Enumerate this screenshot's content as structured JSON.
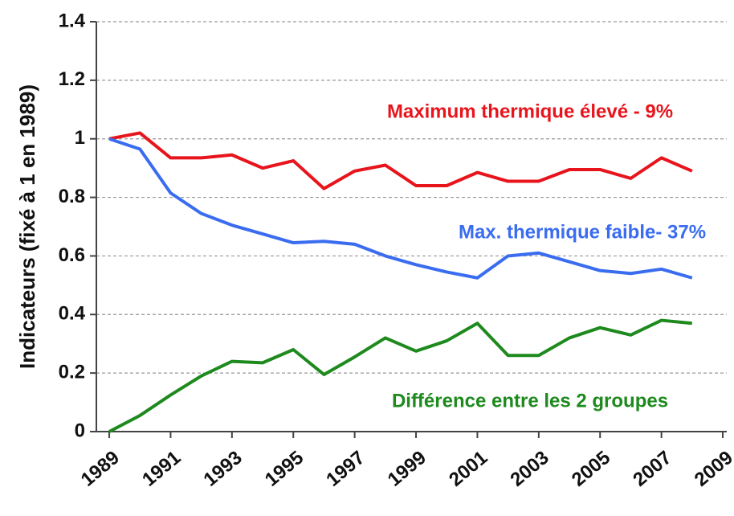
{
  "chart_data": {
    "type": "line",
    "y_label": "Indicateurs (fixé à 1 en 1989)",
    "x": [
      1989,
      1990,
      1991,
      1992,
      1993,
      1994,
      1995,
      1996,
      1997,
      1998,
      1999,
      2000,
      2001,
      2002,
      2003,
      2004,
      2005,
      2006,
      2007,
      2008
    ],
    "series": [
      {
        "name": "Maximum thermique élevé - 9%",
        "color": "#e8141c",
        "values": [
          1.0,
          1.02,
          0.935,
          0.935,
          0.945,
          0.9,
          0.925,
          0.83,
          0.89,
          0.91,
          0.84,
          0.84,
          0.885,
          0.855,
          0.855,
          0.895,
          0.895,
          0.865,
          0.935,
          0.89
        ]
      },
      {
        "name": "Max. thermique faible- 37%",
        "color": "#3a6cf0",
        "values": [
          1.0,
          0.965,
          0.815,
          0.745,
          0.705,
          0.675,
          0.645,
          0.65,
          0.64,
          0.6,
          0.57,
          0.545,
          0.525,
          0.6,
          0.61,
          0.58,
          0.55,
          0.54,
          0.555,
          0.525
        ]
      },
      {
        "name": "Différence entre les 2 groupes",
        "color": "#1e8a1e",
        "values": [
          0,
          0.055,
          0.125,
          0.19,
          0.24,
          0.235,
          0.28,
          0.195,
          0.255,
          0.32,
          0.275,
          0.31,
          0.37,
          0.26,
          0.26,
          0.32,
          0.355,
          0.33,
          0.38,
          0.37
        ]
      }
    ],
    "xlim": [
      1988.58,
      2009.13
    ],
    "xticks": [
      1989,
      1991,
      1993,
      1995,
      1997,
      1999,
      2001,
      2003,
      2005,
      2007,
      2009
    ],
    "ylim": [
      0,
      1.4
    ],
    "yticks": [
      0,
      0.2,
      0.4,
      0.6,
      0.8,
      1,
      1.2,
      1.4
    ],
    "grid": true
  }
}
